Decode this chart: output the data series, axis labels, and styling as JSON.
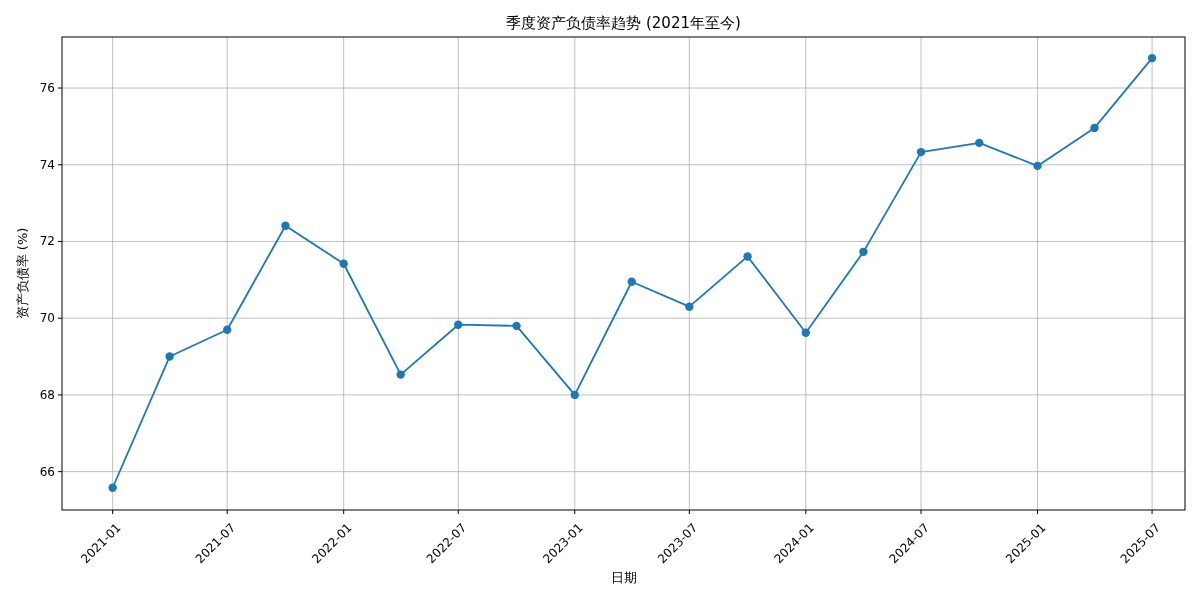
{
  "chart_data": {
    "type": "line",
    "title": "季度资产负债率趋势 (2021年至今)",
    "xlabel": "日期",
    "ylabel": "资产负债率 (%)",
    "x": [
      "2021-01",
      "2021-04",
      "2021-07",
      "2021-10",
      "2022-01",
      "2022-04",
      "2022-07",
      "2022-10",
      "2023-01",
      "2023-04",
      "2023-07",
      "2023-10",
      "2024-01",
      "2024-04",
      "2024-07",
      "2024-10",
      "2025-01",
      "2025-04",
      "2025-07"
    ],
    "series": [
      {
        "color": "#1f77b4",
        "values": [
          65.58,
          69.0,
          69.7,
          72.41,
          71.42,
          68.53,
          69.83,
          69.8,
          68.0,
          70.95,
          70.3,
          71.61,
          69.62,
          71.73,
          74.33,
          74.57,
          73.97,
          74.96,
          76.78
        ]
      }
    ],
    "xlim": [
      "2020-10-13",
      "2025-08-22"
    ],
    "xticks": [
      "2021-01",
      "2021-07",
      "2022-01",
      "2022-07",
      "2023-01",
      "2023-07",
      "2024-01",
      "2024-07",
      "2025-01",
      "2025-07"
    ],
    "ylim": [
      65.0,
      77.33
    ],
    "yticks": [
      66,
      68,
      70,
      72,
      74,
      76
    ],
    "grid": true,
    "marker": "circle",
    "line_style": "solid"
  }
}
